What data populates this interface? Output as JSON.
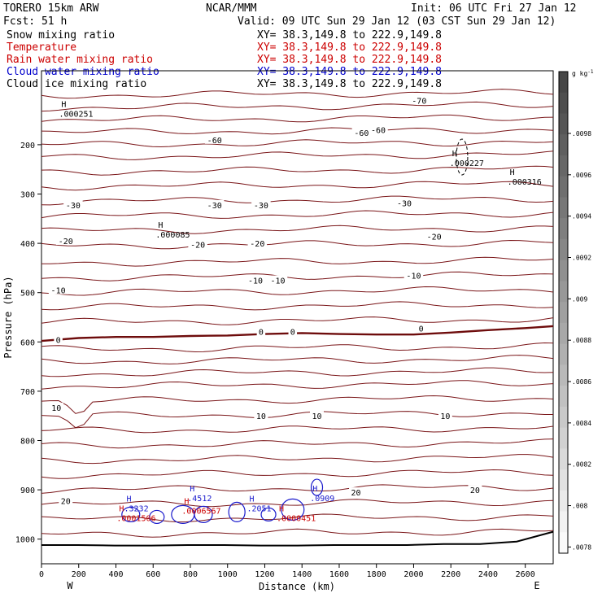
{
  "header": {
    "model_line": "TORERO  15km ARW",
    "org": "NCAR/MMM",
    "init": "Init: 06 UTC Fri 27 Jan 12",
    "fcst": "Fcst:    51 h",
    "valid": "Valid: 09 UTC Sun 29 Jan 12 (03 CST Sun 29 Jan 12)"
  },
  "fields": [
    {
      "name": "Snow mixing ratio",
      "xy": "XY=  38.3,149.8 to 222.9,149.8",
      "color": "#000000"
    },
    {
      "name": "Temperature",
      "xy": "XY=  38.3,149.8 to 222.9,149.8",
      "color": "#cc0000"
    },
    {
      "name": "Rain water mixing ratio",
      "xy": "XY=  38.3,149.8 to 222.9,149.8",
      "color": "#cc0000"
    },
    {
      "name": "Cloud water mixing ratio",
      "xy": "XY=  38.3,149.8 to 222.9,149.8",
      "color": "#0000cc"
    },
    {
      "name": "Cloud ice mixing ratio",
      "xy": "XY=  38.3,149.8 to 222.9,149.8",
      "color": "#000000"
    }
  ],
  "axes": {
    "ylabel": "Pressure (hPa)",
    "xlabel": "Distance (km)",
    "west": "W",
    "east": "E",
    "colorbar_unit": "g kg",
    "colorbar_unit_exp": "-1"
  },
  "colors": {
    "temperature": "#7a1518",
    "zero_isotherm": "#6e0c0c",
    "cloud_water": "#1a1acc",
    "rain": "#cc0000",
    "terrain": "#000000"
  },
  "chart_data": {
    "type": "line",
    "x_domain": [
      0,
      2750
    ],
    "y_domain": [
      50,
      1050
    ],
    "y_scale": "linear, inverted (pressure decreasing upward)",
    "x_ticks": [
      "0",
      "200",
      "400",
      "600",
      "800",
      "1000",
      "1200",
      "1400",
      "1600",
      "1800",
      "2000",
      "2200",
      "2400",
      "2600"
    ],
    "y_ticks": [
      "200",
      "300",
      "400",
      "500",
      "600",
      "700",
      "800",
      "900",
      "1000"
    ],
    "colorbar_ticks": [
      ".0098",
      ".0096",
      ".0094",
      ".0092",
      ".009",
      ".0088",
      ".0086",
      ".0084",
      ".0082",
      ".008",
      ".0078"
    ],
    "isotherm_labels": [
      {
        "text": "-70",
        "x": 2030,
        "p": 110
      },
      {
        "text": "-60",
        "x": 930,
        "p": 190
      },
      {
        "text": "-60",
        "x": 1720,
        "p": 175
      },
      {
        "text": "-60",
        "x": 1810,
        "p": 170
      },
      {
        "text": "-30",
        "x": 170,
        "p": 322
      },
      {
        "text": "-30",
        "x": 930,
        "p": 322
      },
      {
        "text": "-30",
        "x": 1180,
        "p": 322
      },
      {
        "text": "-30",
        "x": 1950,
        "p": 318
      },
      {
        "text": "-20",
        "x": 130,
        "p": 395
      },
      {
        "text": "-20",
        "x": 840,
        "p": 402
      },
      {
        "text": "-20",
        "x": 1160,
        "p": 400
      },
      {
        "text": "-20",
        "x": 2110,
        "p": 386
      },
      {
        "text": "-10",
        "x": 90,
        "p": 495
      },
      {
        "text": "-10",
        "x": 1150,
        "p": 475
      },
      {
        "text": "-10",
        "x": 1270,
        "p": 475
      },
      {
        "text": "-10",
        "x": 2000,
        "p": 465
      },
      {
        "text": "0",
        "x": 90,
        "p": 595
      },
      {
        "text": "0",
        "x": 1180,
        "p": 579
      },
      {
        "text": "0",
        "x": 1350,
        "p": 579
      },
      {
        "text": "0",
        "x": 2040,
        "p": 572
      },
      {
        "text": "10",
        "x": 80,
        "p": 733
      },
      {
        "text": "10",
        "x": 1180,
        "p": 750
      },
      {
        "text": "10",
        "x": 1480,
        "p": 750
      },
      {
        "text": "10",
        "x": 2170,
        "p": 750
      },
      {
        "text": "20",
        "x": 130,
        "p": 922
      },
      {
        "text": "20",
        "x": 1690,
        "p": 905
      },
      {
        "text": "20",
        "x": 2330,
        "p": 900
      }
    ],
    "extrema_labels": [
      {
        "mark": "H",
        "value": ".000251",
        "x": 120,
        "p": 140,
        "series": "cloud ice"
      },
      {
        "mark": "H",
        "value": ".000227",
        "x": 2220,
        "p": 240,
        "series": "cloud ice"
      },
      {
        "mark": "H",
        "value": ".000316",
        "x": 2530,
        "p": 278,
        "series": "cloud ice"
      },
      {
        "mark": "H",
        "value": ".000085",
        "x": 640,
        "p": 385,
        "series": "cloud ice"
      },
      {
        "mark": "H",
        "value": ".3232",
        "x": 470,
        "p": 940,
        "series": "cloud water"
      },
      {
        "mark": "H",
        "value": ".4512",
        "x": 810,
        "p": 920,
        "series": "cloud water"
      },
      {
        "mark": "H",
        "value": ".2051",
        "x": 1130,
        "p": 940,
        "series": "cloud water"
      },
      {
        "mark": "H",
        "value": ".0909",
        "x": 1470,
        "p": 920,
        "series": "cloud water"
      },
      {
        "mark": "H",
        "value": ".0001506",
        "x": 430,
        "p": 960,
        "series": "rain"
      },
      {
        "mark": "H",
        "value": ".0006567",
        "x": 780,
        "p": 945,
        "series": "rain"
      },
      {
        "mark": "H",
        "value": ".0000451",
        "x": 1290,
        "p": 960,
        "series": "rain"
      }
    ],
    "zero_isotherm": {
      "x": [
        0,
        200,
        400,
        600,
        800,
        1000,
        1200,
        1400,
        1600,
        1800,
        2000,
        2200,
        2400,
        2600,
        2750
      ],
      "p": [
        598,
        592,
        590,
        590,
        588,
        587,
        584,
        582,
        584,
        585,
        585,
        581,
        576,
        572,
        568
      ]
    },
    "terrain_p": [
      1012,
      1012,
      1013,
      1013,
      1012,
      1012,
      1013,
      1013,
      1012,
      1012,
      1012,
      1010,
      1010,
      1005,
      985
    ]
  }
}
